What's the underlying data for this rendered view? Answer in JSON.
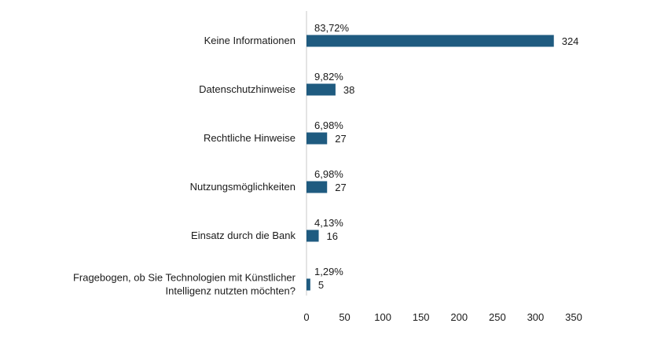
{
  "chart_data": {
    "type": "bar",
    "orientation": "horizontal",
    "categories": [
      [
        "Keine Informationen"
      ],
      [
        "Datenschutzhinweise"
      ],
      [
        "Rechtliche Hinweise"
      ],
      [
        "Nutzungsmöglichkeiten"
      ],
      [
        "Einsatz durch die Bank"
      ],
      [
        "Fragebogen, ob Sie Technologien mit Künstlicher",
        "Intelligenz nutzten möchten?"
      ]
    ],
    "values": [
      324,
      38,
      27,
      27,
      16,
      5
    ],
    "value_labels": [
      "324",
      "38",
      "27",
      "27",
      "16",
      "5"
    ],
    "percent_labels": [
      "83,72%",
      "9,82%",
      "6,98%",
      "6,98%",
      "4,13%",
      "1,29%"
    ],
    "xlim": [
      0,
      350
    ],
    "xticks": [
      "0",
      "50",
      "100",
      "150",
      "200",
      "250",
      "300",
      "350"
    ],
    "grid": false,
    "bar_color": "#1f5b80",
    "axis_color": "#c8c8c8"
  }
}
